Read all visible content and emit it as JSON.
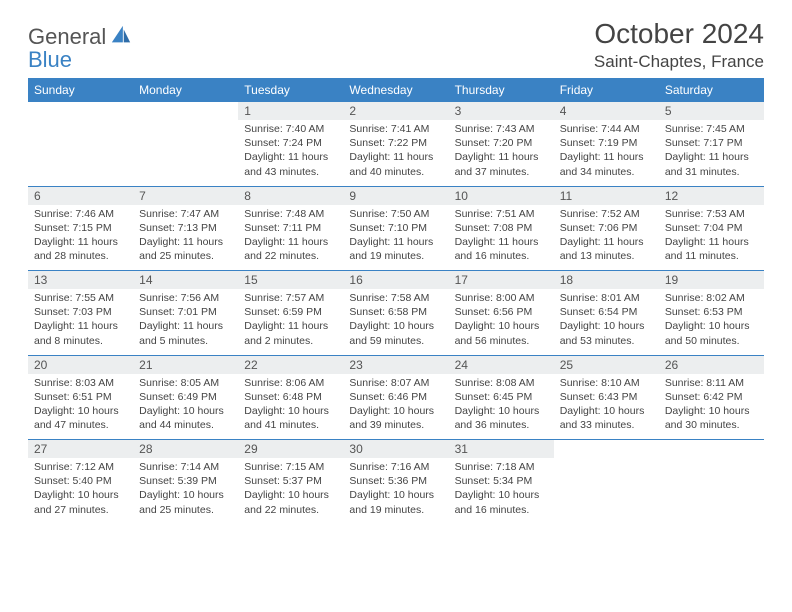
{
  "brand": {
    "name_a": "General",
    "name_b": "Blue"
  },
  "title": "October 2024",
  "location": "Saint-Chaptes, France",
  "colors": {
    "accent": "#3a82c4",
    "header_bg": "#3a82c4",
    "header_text": "#ffffff",
    "daynum_bg": "#eceeef",
    "body_text": "#444444",
    "page_bg": "#ffffff"
  },
  "day_labels": [
    "Sunday",
    "Monday",
    "Tuesday",
    "Wednesday",
    "Thursday",
    "Friday",
    "Saturday"
  ],
  "weeks": [
    {
      "nums": [
        "",
        "",
        "1",
        "2",
        "3",
        "4",
        "5"
      ],
      "cells": [
        null,
        null,
        {
          "sunrise": "Sunrise: 7:40 AM",
          "sunset": "Sunset: 7:24 PM",
          "daylight": "Daylight: 11 hours and 43 minutes."
        },
        {
          "sunrise": "Sunrise: 7:41 AM",
          "sunset": "Sunset: 7:22 PM",
          "daylight": "Daylight: 11 hours and 40 minutes."
        },
        {
          "sunrise": "Sunrise: 7:43 AM",
          "sunset": "Sunset: 7:20 PM",
          "daylight": "Daylight: 11 hours and 37 minutes."
        },
        {
          "sunrise": "Sunrise: 7:44 AM",
          "sunset": "Sunset: 7:19 PM",
          "daylight": "Daylight: 11 hours and 34 minutes."
        },
        {
          "sunrise": "Sunrise: 7:45 AM",
          "sunset": "Sunset: 7:17 PM",
          "daylight": "Daylight: 11 hours and 31 minutes."
        }
      ]
    },
    {
      "nums": [
        "6",
        "7",
        "8",
        "9",
        "10",
        "11",
        "12"
      ],
      "cells": [
        {
          "sunrise": "Sunrise: 7:46 AM",
          "sunset": "Sunset: 7:15 PM",
          "daylight": "Daylight: 11 hours and 28 minutes."
        },
        {
          "sunrise": "Sunrise: 7:47 AM",
          "sunset": "Sunset: 7:13 PM",
          "daylight": "Daylight: 11 hours and 25 minutes."
        },
        {
          "sunrise": "Sunrise: 7:48 AM",
          "sunset": "Sunset: 7:11 PM",
          "daylight": "Daylight: 11 hours and 22 minutes."
        },
        {
          "sunrise": "Sunrise: 7:50 AM",
          "sunset": "Sunset: 7:10 PM",
          "daylight": "Daylight: 11 hours and 19 minutes."
        },
        {
          "sunrise": "Sunrise: 7:51 AM",
          "sunset": "Sunset: 7:08 PM",
          "daylight": "Daylight: 11 hours and 16 minutes."
        },
        {
          "sunrise": "Sunrise: 7:52 AM",
          "sunset": "Sunset: 7:06 PM",
          "daylight": "Daylight: 11 hours and 13 minutes."
        },
        {
          "sunrise": "Sunrise: 7:53 AM",
          "sunset": "Sunset: 7:04 PM",
          "daylight": "Daylight: 11 hours and 11 minutes."
        }
      ]
    },
    {
      "nums": [
        "13",
        "14",
        "15",
        "16",
        "17",
        "18",
        "19"
      ],
      "cells": [
        {
          "sunrise": "Sunrise: 7:55 AM",
          "sunset": "Sunset: 7:03 PM",
          "daylight": "Daylight: 11 hours and 8 minutes."
        },
        {
          "sunrise": "Sunrise: 7:56 AM",
          "sunset": "Sunset: 7:01 PM",
          "daylight": "Daylight: 11 hours and 5 minutes."
        },
        {
          "sunrise": "Sunrise: 7:57 AM",
          "sunset": "Sunset: 6:59 PM",
          "daylight": "Daylight: 11 hours and 2 minutes."
        },
        {
          "sunrise": "Sunrise: 7:58 AM",
          "sunset": "Sunset: 6:58 PM",
          "daylight": "Daylight: 10 hours and 59 minutes."
        },
        {
          "sunrise": "Sunrise: 8:00 AM",
          "sunset": "Sunset: 6:56 PM",
          "daylight": "Daylight: 10 hours and 56 minutes."
        },
        {
          "sunrise": "Sunrise: 8:01 AM",
          "sunset": "Sunset: 6:54 PM",
          "daylight": "Daylight: 10 hours and 53 minutes."
        },
        {
          "sunrise": "Sunrise: 8:02 AM",
          "sunset": "Sunset: 6:53 PM",
          "daylight": "Daylight: 10 hours and 50 minutes."
        }
      ]
    },
    {
      "nums": [
        "20",
        "21",
        "22",
        "23",
        "24",
        "25",
        "26"
      ],
      "cells": [
        {
          "sunrise": "Sunrise: 8:03 AM",
          "sunset": "Sunset: 6:51 PM",
          "daylight": "Daylight: 10 hours and 47 minutes."
        },
        {
          "sunrise": "Sunrise: 8:05 AM",
          "sunset": "Sunset: 6:49 PM",
          "daylight": "Daylight: 10 hours and 44 minutes."
        },
        {
          "sunrise": "Sunrise: 8:06 AM",
          "sunset": "Sunset: 6:48 PM",
          "daylight": "Daylight: 10 hours and 41 minutes."
        },
        {
          "sunrise": "Sunrise: 8:07 AM",
          "sunset": "Sunset: 6:46 PM",
          "daylight": "Daylight: 10 hours and 39 minutes."
        },
        {
          "sunrise": "Sunrise: 8:08 AM",
          "sunset": "Sunset: 6:45 PM",
          "daylight": "Daylight: 10 hours and 36 minutes."
        },
        {
          "sunrise": "Sunrise: 8:10 AM",
          "sunset": "Sunset: 6:43 PM",
          "daylight": "Daylight: 10 hours and 33 minutes."
        },
        {
          "sunrise": "Sunrise: 8:11 AM",
          "sunset": "Sunset: 6:42 PM",
          "daylight": "Daylight: 10 hours and 30 minutes."
        }
      ]
    },
    {
      "nums": [
        "27",
        "28",
        "29",
        "30",
        "31",
        "",
        ""
      ],
      "cells": [
        {
          "sunrise": "Sunrise: 7:12 AM",
          "sunset": "Sunset: 5:40 PM",
          "daylight": "Daylight: 10 hours and 27 minutes."
        },
        {
          "sunrise": "Sunrise: 7:14 AM",
          "sunset": "Sunset: 5:39 PM",
          "daylight": "Daylight: 10 hours and 25 minutes."
        },
        {
          "sunrise": "Sunrise: 7:15 AM",
          "sunset": "Sunset: 5:37 PM",
          "daylight": "Daylight: 10 hours and 22 minutes."
        },
        {
          "sunrise": "Sunrise: 7:16 AM",
          "sunset": "Sunset: 5:36 PM",
          "daylight": "Daylight: 10 hours and 19 minutes."
        },
        {
          "sunrise": "Sunrise: 7:18 AM",
          "sunset": "Sunset: 5:34 PM",
          "daylight": "Daylight: 10 hours and 16 minutes."
        },
        null,
        null
      ]
    }
  ]
}
